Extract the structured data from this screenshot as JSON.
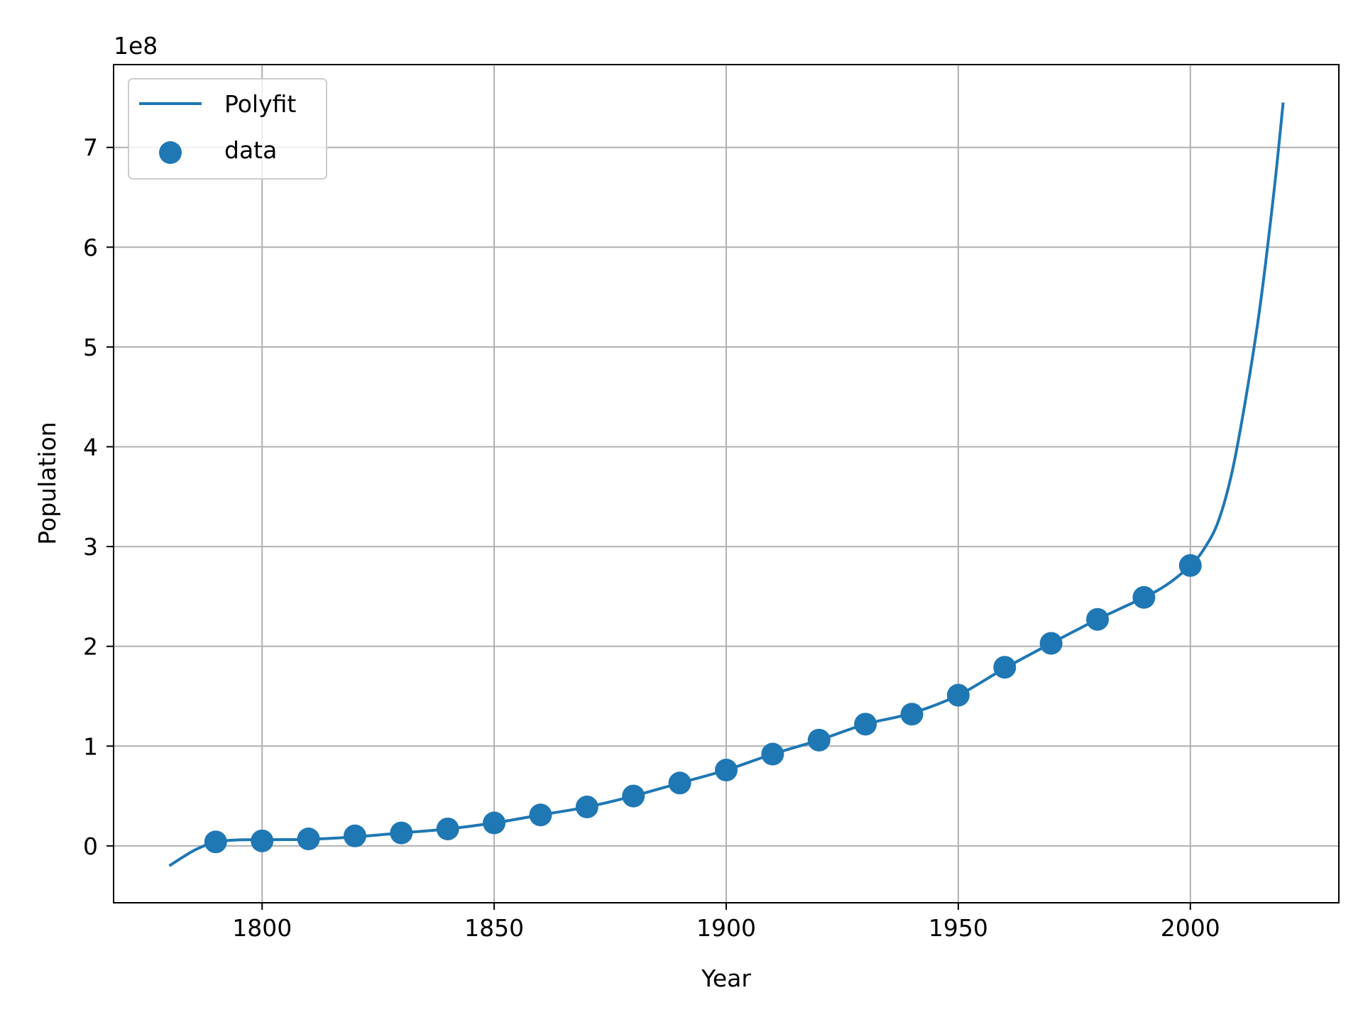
{
  "chart_data": {
    "type": "line",
    "xlabel": "Year",
    "ylabel": "Population",
    "offset_text": "1e8",
    "y_scale_factor": 100000000,
    "xlim": [
      1768,
      2032
    ],
    "ylim": [
      -0.57,
      7.83
    ],
    "x_ticks": [
      1800,
      1850,
      1900,
      1950,
      2000
    ],
    "x_tick_labels": [
      "1800",
      "1850",
      "1900",
      "1950",
      "2000"
    ],
    "y_ticks": [
      0,
      1,
      2,
      3,
      4,
      5,
      6,
      7
    ],
    "y_tick_labels": [
      "0",
      "1",
      "2",
      "3",
      "4",
      "5",
      "6",
      "7"
    ],
    "grid": true,
    "legend": {
      "position": "top-left",
      "entries": [
        {
          "label": "Polyfit",
          "marker": "line"
        },
        {
          "label": "data",
          "marker": "circle"
        }
      ]
    },
    "color": "#1f77b4",
    "series": [
      {
        "name": "Polyfit",
        "kind": "line",
        "x": [
          1780,
          1783,
          1786,
          1790,
          1795,
          1800,
          1805,
          1810,
          1820,
          1830,
          1840,
          1850,
          1860,
          1870,
          1880,
          1890,
          1900,
          1910,
          1920,
          1930,
          1940,
          1950,
          1960,
          1970,
          1980,
          1990,
          1995,
          2000,
          2003,
          2006,
          2009,
          2012,
          2015,
          2018,
          2020
        ],
        "y": [
          -0.2,
          -0.11,
          -0.03,
          0.04,
          0.06,
          0.062,
          0.063,
          0.066,
          0.09,
          0.13,
          0.17,
          0.23,
          0.31,
          0.39,
          0.5,
          0.63,
          0.76,
          0.92,
          1.06,
          1.22,
          1.33,
          1.51,
          1.78,
          2.03,
          2.27,
          2.49,
          2.62,
          2.81,
          2.98,
          3.25,
          3.75,
          4.5,
          5.4,
          6.55,
          7.45
        ]
      },
      {
        "name": "data",
        "kind": "scatter",
        "x": [
          1790,
          1800,
          1810,
          1820,
          1830,
          1840,
          1850,
          1860,
          1870,
          1880,
          1890,
          1900,
          1910,
          1920,
          1930,
          1940,
          1950,
          1960,
          1970,
          1980,
          1990,
          2000
        ],
        "y": [
          0.04,
          0.05,
          0.07,
          0.1,
          0.13,
          0.17,
          0.23,
          0.31,
          0.39,
          0.5,
          0.63,
          0.76,
          0.92,
          1.06,
          1.22,
          1.32,
          1.51,
          1.79,
          2.03,
          2.27,
          2.49,
          2.81
        ]
      }
    ]
  }
}
